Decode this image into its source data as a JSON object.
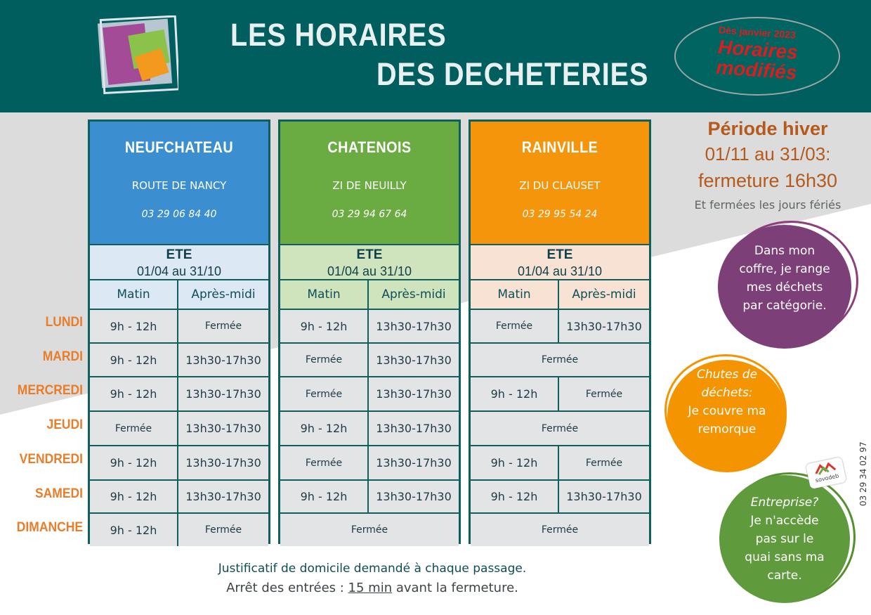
{
  "header": {
    "title_line1": "LES HORAIRES",
    "title_line2": "DES DECHETERIES",
    "badge_top": "Dès janvier 2023",
    "badge_main": "Horaires modifiés"
  },
  "columns": {
    "morning": "Matin",
    "afternoon": "Après-midi"
  },
  "season": {
    "label": "ETE",
    "dates": "01/04 au 31/10"
  },
  "days": [
    "LUNDI",
    "MARDI",
    "MERCREDI",
    "JEUDI",
    "VENDREDI",
    "SAMEDI",
    "DIMANCHE"
  ],
  "sites": [
    {
      "name": "NEUFCHATEAU",
      "address": "ROUTE DE NANCY",
      "phone": "03 29 06 84 40",
      "color": "#3b8fd0",
      "season_bg": "#dce8f4",
      "rows": [
        [
          "9h - 12h",
          "Fermée"
        ],
        [
          "9h - 12h",
          "13h30-17h30"
        ],
        [
          "9h - 12h",
          "13h30-17h30"
        ],
        [
          "Fermée",
          "13h30-17h30"
        ],
        [
          "9h - 12h",
          "13h30-17h30"
        ],
        [
          "9h - 12h",
          "13h30-17h30"
        ],
        [
          "9h - 12h",
          "Fermée"
        ]
      ]
    },
    {
      "name": "CHATENOIS",
      "address": "ZI DE NEUILLY",
      "phone": "03  29 94 67 64",
      "color": "#6aab42",
      "season_bg": "#cfe4bd",
      "rows": [
        [
          "9h - 12h",
          "13h30-17h30"
        ],
        [
          "Fermée",
          "13h30-17h30"
        ],
        [
          "Fermée",
          "13h30-17h30"
        ],
        [
          "9h - 12h",
          "13h30-17h30"
        ],
        [
          "Fermée",
          "13h30-17h30"
        ],
        [
          "9h - 12h",
          "13h30-17h30"
        ],
        [
          "Fermée"
        ]
      ]
    },
    {
      "name": "RAINVILLE",
      "address": "ZI DU CLAUSET",
      "phone": "03 29 95 54 24",
      "color": "#f5950b",
      "season_bg": "#f8e2d3",
      "rows": [
        [
          "Fermée",
          "13h30-17h30"
        ],
        [
          "Fermée"
        ],
        [
          "9h - 12h",
          "Fermée"
        ],
        [
          "Fermée"
        ],
        [
          "9h - 12h",
          "Fermée"
        ],
        [
          "9h - 12h",
          "13h30-17h30"
        ],
        [
          "Fermée"
        ]
      ]
    }
  ],
  "winter": {
    "title": "Période hiver",
    "dates": "01/11 au 31/03:",
    "closing": "fermeture 16h30",
    "holidays": "Et fermées les jours fériés"
  },
  "bubbles": {
    "purple": "Dans mon coffre, je range mes déchets par catégorie.",
    "orange_title": "Chutes de déchets:",
    "orange_body": "Je couvre ma remorque",
    "green_title": "Entreprise?",
    "green_body": "Je n'accède pas sur le quai sans ma carte."
  },
  "side_phone": "03 29 34 02 97",
  "logo_text": "sovodeb",
  "footer": {
    "line1": "Justificatif de domicile demandé à chaque passage.",
    "line2_pre": "Arrêt des entrées : ",
    "line2_emph": "15 min",
    "line2_post": " avant la fermeture."
  }
}
